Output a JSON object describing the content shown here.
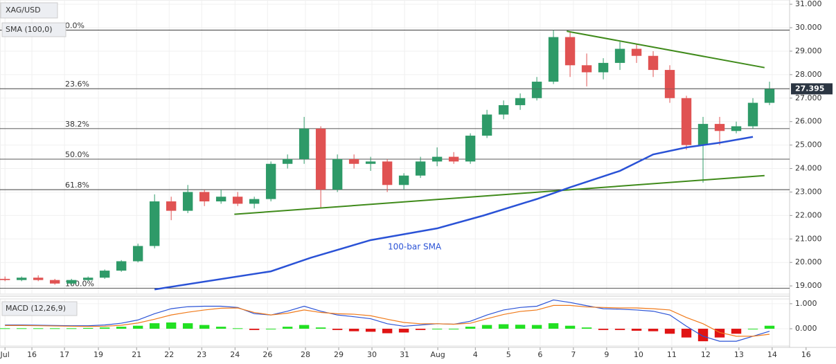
{
  "chart_data": [
    {
      "type": "candlestick",
      "title": "XAG/USD",
      "indicator": "SMA (100,0)",
      "up_color": "#2e9a68",
      "down_color": "#e05252",
      "x": [
        0,
        0.5,
        1,
        1.5,
        2,
        2.5,
        3,
        3.5,
        4,
        4.5,
        5,
        5.5,
        6,
        6.5,
        7,
        7.5,
        8,
        8.5,
        9,
        9.5,
        10,
        10.5,
        11,
        11.5,
        12,
        12.5,
        13,
        13.5,
        14,
        14.5,
        15,
        15.5,
        16,
        16.5,
        17,
        17.5,
        18,
        18.5,
        19,
        19.5,
        20,
        20.5,
        21,
        21.5,
        22,
        22.5,
        23
      ],
      "open": [
        19.3,
        19.25,
        19.35,
        19.25,
        19.1,
        19.25,
        19.35,
        19.65,
        20.05,
        20.7,
        22.6,
        22.2,
        23.0,
        22.6,
        22.8,
        22.5,
        22.7,
        24.2,
        24.4,
        25.7,
        23.1,
        24.4,
        24.2,
        24.3,
        23.3,
        23.7,
        24.3,
        24.5,
        24.3,
        25.4,
        26.3,
        26.7,
        27.0,
        27.7,
        29.6,
        28.4,
        28.1,
        28.5,
        29.1,
        28.8,
        28.2,
        27.0,
        25.0,
        25.9,
        25.6,
        25.8,
        26.8
      ],
      "high": [
        19.4,
        19.4,
        19.45,
        19.3,
        19.3,
        19.4,
        19.7,
        20.1,
        20.8,
        22.9,
        22.8,
        23.3,
        23.1,
        23.1,
        23.0,
        22.8,
        24.3,
        24.6,
        26.2,
        25.8,
        24.6,
        24.6,
        24.5,
        24.4,
        23.8,
        24.5,
        24.9,
        24.7,
        25.5,
        26.5,
        26.9,
        27.2,
        27.9,
        29.9,
        29.8,
        28.9,
        28.7,
        29.4,
        29.3,
        29.0,
        28.4,
        27.1,
        26.2,
        26.2,
        26.0,
        27.0,
        27.7
      ],
      "low": [
        19.2,
        19.2,
        19.2,
        19.05,
        19.05,
        19.2,
        19.3,
        19.6,
        20.0,
        20.6,
        21.8,
        22.1,
        22.4,
        22.5,
        22.4,
        22.3,
        22.6,
        24.0,
        24.2,
        22.3,
        23.0,
        24.0,
        23.9,
        23.0,
        23.1,
        23.6,
        24.1,
        24.2,
        24.2,
        25.3,
        26.1,
        26.5,
        26.9,
        27.6,
        27.9,
        27.5,
        27.8,
        28.2,
        28.5,
        27.9,
        26.8,
        24.8,
        23.4,
        25.0,
        25.5,
        25.7,
        26.7
      ],
      "close": [
        19.25,
        19.35,
        19.25,
        19.1,
        19.25,
        19.35,
        19.65,
        20.05,
        20.7,
        22.6,
        22.2,
        23.0,
        22.6,
        22.8,
        22.5,
        22.7,
        24.2,
        24.4,
        25.7,
        23.1,
        24.4,
        24.2,
        24.3,
        23.3,
        23.7,
        24.3,
        24.5,
        24.3,
        25.4,
        26.3,
        26.7,
        27.0,
        27.7,
        29.6,
        28.4,
        28.1,
        28.5,
        29.1,
        28.8,
        28.2,
        27.0,
        25.0,
        25.9,
        25.6,
        25.8,
        26.8,
        27.4
      ],
      "series": [
        {
          "name": "100-bar SMA",
          "color": "#2a52d6",
          "x": [
            4.5,
            8,
            9.2,
            11,
            13,
            14.4,
            16,
            17,
            18.5,
            19.5,
            20.5,
            21.5,
            22.5
          ],
          "values": [
            18.85,
            19.62,
            20.2,
            20.95,
            21.45,
            22.0,
            22.7,
            23.2,
            23.9,
            24.6,
            24.9,
            25.1,
            25.35
          ]
        }
      ],
      "trendlines": [
        {
          "color": "#3f8a1a",
          "x": [
            6.9,
            22.85
          ],
          "values": [
            22.05,
            23.7
          ]
        },
        {
          "color": "#3f8a1a",
          "x": [
            16.9,
            22.85
          ],
          "values": [
            29.85,
            28.3
          ]
        }
      ],
      "fibonacci": [
        {
          "label": "0.0%",
          "value": 29.9
        },
        {
          "label": "23.6%",
          "value": 27.4
        },
        {
          "label": "38.2%",
          "value": 25.7
        },
        {
          "label": "50.0%",
          "value": 24.4
        },
        {
          "label": "61.8%",
          "value": 23.1
        },
        {
          "label": "100.0%",
          "value": 18.9
        }
      ],
      "last_price": 27.395,
      "xlim": [
        -0.15,
        25.0
      ],
      "ylim": [
        18.65,
        31.18
      ],
      "yticks": [
        {
          "value": 19,
          "label": "19.000"
        },
        {
          "value": 20,
          "label": "20.000"
        },
        {
          "value": 21,
          "label": "21.000"
        },
        {
          "value": 22,
          "label": "22.000"
        },
        {
          "value": 23,
          "label": "23.000"
        },
        {
          "value": 24,
          "label": "24.000"
        },
        {
          "value": 25,
          "label": "25.000"
        },
        {
          "value": 26,
          "label": "26.000"
        },
        {
          "value": 27,
          "label": "27.000"
        },
        {
          "value": 28,
          "label": "28.000"
        },
        {
          "value": 29,
          "label": "29.000"
        },
        {
          "value": 30,
          "label": "30.000"
        },
        {
          "value": 31,
          "label": "31.000"
        }
      ]
    },
    {
      "type": "macd",
      "title": "MACD (12,26,9)",
      "up_color": "#22e022",
      "down_color": "#e01414",
      "x": [
        0,
        0.5,
        1,
        1.5,
        2,
        2.5,
        3,
        3.5,
        4,
        4.5,
        5,
        5.5,
        6,
        6.5,
        7,
        7.5,
        8,
        8.5,
        9,
        9.5,
        10,
        10.5,
        11,
        11.5,
        12,
        12.5,
        13,
        13.5,
        14,
        14.5,
        15,
        15.5,
        16,
        16.5,
        17,
        17.5,
        18,
        18.5,
        19,
        19.5,
        20,
        20.5,
        21,
        21.5,
        22,
        22.5,
        23
      ],
      "histogram": [
        0.02,
        0.02,
        0.02,
        0.02,
        0.02,
        0.03,
        0.05,
        0.08,
        0.12,
        0.22,
        0.25,
        0.22,
        0.15,
        0.08,
        0.02,
        -0.05,
        0.0,
        0.08,
        0.15,
        0.05,
        -0.05,
        -0.1,
        -0.12,
        -0.18,
        -0.15,
        -0.05,
        0.0,
        0.0,
        0.08,
        0.15,
        0.18,
        0.16,
        0.15,
        0.22,
        0.12,
        0.05,
        -0.05,
        -0.05,
        -0.08,
        -0.1,
        -0.2,
        -0.35,
        -0.5,
        -0.35,
        -0.2,
        0.0,
        0.12
      ],
      "series": [
        {
          "color": "#2a52d6",
          "values": [
            0.15,
            0.15,
            0.14,
            0.13,
            0.12,
            0.12,
            0.15,
            0.22,
            0.35,
            0.6,
            0.8,
            0.88,
            0.9,
            0.9,
            0.85,
            0.6,
            0.55,
            0.7,
            0.9,
            0.7,
            0.55,
            0.48,
            0.4,
            0.2,
            0.1,
            0.15,
            0.2,
            0.18,
            0.3,
            0.55,
            0.75,
            0.85,
            0.9,
            1.15,
            1.05,
            0.92,
            0.8,
            0.78,
            0.75,
            0.7,
            0.55,
            0.1,
            -0.3,
            -0.5,
            -0.5,
            -0.3,
            -0.1
          ]
        },
        {
          "color": "#f07a1a",
          "values": [
            0.13,
            0.13,
            0.12,
            0.11,
            0.1,
            0.09,
            0.1,
            0.14,
            0.23,
            0.38,
            0.55,
            0.66,
            0.75,
            0.82,
            0.83,
            0.65,
            0.55,
            0.62,
            0.75,
            0.65,
            0.6,
            0.58,
            0.52,
            0.38,
            0.25,
            0.2,
            0.2,
            0.18,
            0.22,
            0.4,
            0.57,
            0.69,
            0.75,
            0.93,
            0.93,
            0.87,
            0.85,
            0.83,
            0.83,
            0.8,
            0.75,
            0.45,
            0.2,
            -0.15,
            -0.3,
            -0.3,
            -0.22
          ]
        }
      ],
      "xlim": [
        -0.15,
        25.0
      ],
      "ylim": [
        -0.69,
        1.19
      ],
      "yticks": [
        {
          "value": 0,
          "label": "0.000"
        },
        {
          "value": 1,
          "label": "1.000"
        }
      ],
      "xticks": [
        {
          "value": 0,
          "label": "Jul"
        },
        {
          "value": 0.81,
          "label": "16"
        },
        {
          "value": 1.79,
          "label": "17"
        },
        {
          "value": 2.81,
          "label": "19"
        },
        {
          "value": 3.96,
          "label": "21"
        },
        {
          "value": 4.94,
          "label": "22"
        },
        {
          "value": 5.92,
          "label": "23"
        },
        {
          "value": 6.92,
          "label": "24"
        },
        {
          "value": 7.9,
          "label": "26"
        },
        {
          "value": 9.04,
          "label": "28"
        },
        {
          "value": 10.04,
          "label": "29"
        },
        {
          "value": 11.04,
          "label": "30"
        },
        {
          "value": 12.02,
          "label": "31"
        },
        {
          "value": 13.02,
          "label": "Aug"
        },
        {
          "value": 14.15,
          "label": "4"
        },
        {
          "value": 15.15,
          "label": "5"
        },
        {
          "value": 16.1,
          "label": "6"
        },
        {
          "value": 17.1,
          "label": "7"
        },
        {
          "value": 18.1,
          "label": "9"
        },
        {
          "value": 19.06,
          "label": "10"
        },
        {
          "value": 20.06,
          "label": "11"
        },
        {
          "value": 21.08,
          "label": "12"
        },
        {
          "value": 22.08,
          "label": "13"
        },
        {
          "value": 23.08,
          "label": "14"
        },
        {
          "value": 24.1,
          "label": "16"
        }
      ]
    }
  ]
}
